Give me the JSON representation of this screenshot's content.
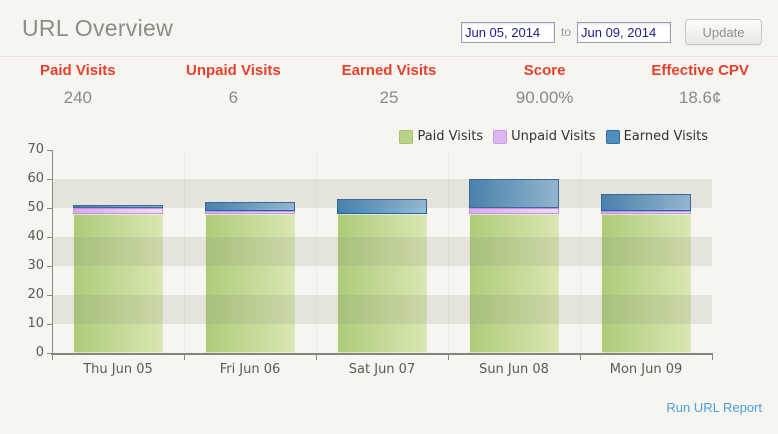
{
  "header": {
    "title": "URL Overview",
    "date_from": "Jun 05, 2014",
    "date_to": "Jun 09, 2014",
    "to_label": "to",
    "update_label": "Update"
  },
  "stats": {
    "items": [
      {
        "label": "Paid Visits",
        "value": "240"
      },
      {
        "label": "Unpaid Visits",
        "value": "6"
      },
      {
        "label": "Earned Visits",
        "value": "25"
      },
      {
        "label": "Score",
        "value": "90.00%"
      },
      {
        "label": "Effective CPV",
        "value": "18.6¢"
      }
    ]
  },
  "chart_data": {
    "type": "bar",
    "stacked": true,
    "categories": [
      "Thu Jun 05",
      "Fri Jun 06",
      "Sat Jun 07",
      "Sun Jun 08",
      "Mon Jun 09"
    ],
    "series": [
      {
        "name": "Paid Visits",
        "values": [
          48,
          48,
          48,
          48,
          48
        ],
        "colors": {
          "left": "#aecb7a",
          "right": "#d9e7b2",
          "border": "rgba(255,255,255,0.55)",
          "legend": "#b9d488",
          "legend_border": "#a3c468"
        }
      },
      {
        "name": "Unpaid Visits",
        "values": [
          2,
          1,
          0,
          2,
          1
        ],
        "colors": {
          "left": "#d8abee",
          "right": "#efdef8",
          "border": "#c392dd",
          "legend": "#ddb7f1",
          "legend_border": "#c99fe4"
        }
      },
      {
        "name": "Earned Visits",
        "values": [
          1,
          3,
          5,
          10,
          6
        ],
        "colors": {
          "left": "#3f80b5",
          "right": "#93bedd",
          "border": "#2d639c",
          "legend": "#4e8fc1",
          "legend_border": "#356f9f"
        }
      }
    ],
    "stack_totals": [
      51,
      52,
      53,
      60,
      55
    ],
    "title": "",
    "xlabel": "",
    "ylabel": "",
    "ylim": [
      0,
      70
    ],
    "ytick_step": 10,
    "grid_bands": [
      [
        10,
        20
      ],
      [
        30,
        40
      ],
      [
        50,
        60
      ]
    ],
    "legend_position": "top-right"
  },
  "footer": {
    "report_link": "Run URL Report"
  },
  "colors": {
    "page_bg": "#f6f5ef",
    "accent_red": "#e5412d",
    "value_gray": "#8b8b85",
    "date_text_navy": "#1d1d8c",
    "link_blue": "#4b9fe3",
    "axis": "#85847c",
    "band": "rgba(139,137,127,0.16)"
  }
}
